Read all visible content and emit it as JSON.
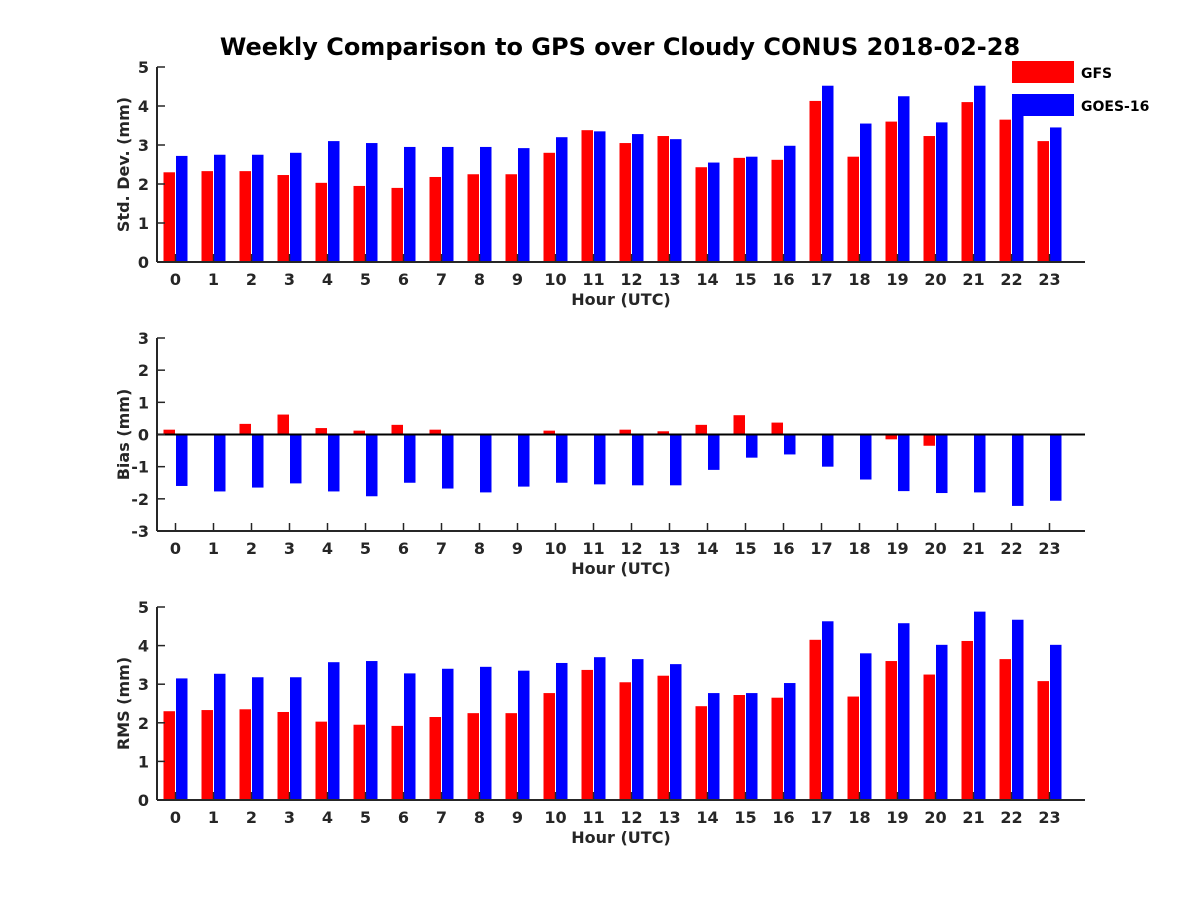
{
  "title": "Weekly Comparison to GPS over Cloudy CONUS 2018-02-28",
  "colors": {
    "GFS": "#ff0000",
    "GOES-16": "#0000ff",
    "axis": "#262626",
    "text": "#262626"
  },
  "legend": {
    "placement": "top-right",
    "entries": [
      "GFS",
      "GOES-16"
    ]
  },
  "chart_data": [
    {
      "type": "bar",
      "xlabel": "Hour (UTC)",
      "ylabel": "Std. Dev. (mm)",
      "categories": [
        "0",
        "1",
        "2",
        "3",
        "4",
        "5",
        "6",
        "7",
        "8",
        "9",
        "10",
        "11",
        "12",
        "13",
        "14",
        "15",
        "16",
        "17",
        "18",
        "19",
        "20",
        "21",
        "22",
        "23"
      ],
      "ylim": [
        0,
        5
      ],
      "yticks": [
        "0",
        "1",
        "2",
        "3",
        "4",
        "5"
      ],
      "grid": false,
      "series": [
        {
          "name": "GFS",
          "values": [
            2.3,
            2.33,
            2.33,
            2.23,
            2.03,
            1.95,
            1.9,
            2.18,
            2.25,
            2.25,
            2.8,
            3.38,
            3.05,
            3.23,
            2.43,
            2.67,
            2.62,
            4.13,
            2.7,
            3.6,
            3.23,
            4.1,
            3.65,
            3.1
          ]
        },
        {
          "name": "GOES-16",
          "values": [
            2.72,
            2.75,
            2.75,
            2.8,
            3.1,
            3.05,
            2.95,
            2.95,
            2.95,
            2.92,
            3.2,
            3.35,
            3.28,
            3.15,
            2.55,
            2.7,
            2.98,
            4.52,
            3.55,
            4.25,
            3.58,
            4.52,
            4.1,
            3.45
          ]
        }
      ]
    },
    {
      "type": "bar",
      "xlabel": "Hour (UTC)",
      "ylabel": "Bias (mm)",
      "categories": [
        "0",
        "1",
        "2",
        "3",
        "4",
        "5",
        "6",
        "7",
        "8",
        "9",
        "10",
        "11",
        "12",
        "13",
        "14",
        "15",
        "16",
        "17",
        "18",
        "19",
        "20",
        "21",
        "22",
        "23"
      ],
      "ylim": [
        -3,
        3
      ],
      "yticks": [
        "-3",
        "-2",
        "-1",
        "0",
        "1",
        "2",
        "3"
      ],
      "grid": false,
      "zero_line": true,
      "series": [
        {
          "name": "GFS",
          "values": [
            0.15,
            0.03,
            0.33,
            0.62,
            0.2,
            0.12,
            0.3,
            0.15,
            -0.03,
            -0.03,
            0.12,
            0.02,
            0.15,
            0.1,
            0.3,
            0.6,
            0.37,
            -0.03,
            0.03,
            -0.15,
            -0.35,
            -0.03,
            0.0,
            0.0
          ]
        },
        {
          "name": "GOES-16",
          "values": [
            -1.6,
            -1.77,
            -1.65,
            -1.52,
            -1.77,
            -1.92,
            -1.5,
            -1.68,
            -1.8,
            -1.62,
            -1.5,
            -1.55,
            -1.58,
            -1.58,
            -1.1,
            -0.72,
            -0.62,
            -1.0,
            -1.4,
            -1.76,
            -1.82,
            -1.8,
            -2.22,
            -2.06
          ]
        }
      ]
    },
    {
      "type": "bar",
      "xlabel": "Hour (UTC)",
      "ylabel": "RMS (mm)",
      "categories": [
        "0",
        "1",
        "2",
        "3",
        "4",
        "5",
        "6",
        "7",
        "8",
        "9",
        "10",
        "11",
        "12",
        "13",
        "14",
        "15",
        "16",
        "17",
        "18",
        "19",
        "20",
        "21",
        "22",
        "23"
      ],
      "ylim": [
        0,
        5
      ],
      "yticks": [
        "0",
        "1",
        "2",
        "3",
        "4",
        "5"
      ],
      "grid": false,
      "series": [
        {
          "name": "GFS",
          "values": [
            2.3,
            2.33,
            2.35,
            2.28,
            2.03,
            1.95,
            1.92,
            2.15,
            2.25,
            2.25,
            2.77,
            3.37,
            3.05,
            3.22,
            2.43,
            2.72,
            2.65,
            4.15,
            2.68,
            3.6,
            3.25,
            4.12,
            3.65,
            3.08
          ]
        },
        {
          "name": "GOES-16",
          "values": [
            3.15,
            3.27,
            3.18,
            3.18,
            3.57,
            3.6,
            3.28,
            3.4,
            3.45,
            3.35,
            3.55,
            3.7,
            3.65,
            3.52,
            2.77,
            2.77,
            3.03,
            4.63,
            3.8,
            4.58,
            4.02,
            4.88,
            4.67,
            4.02
          ]
        }
      ]
    }
  ]
}
